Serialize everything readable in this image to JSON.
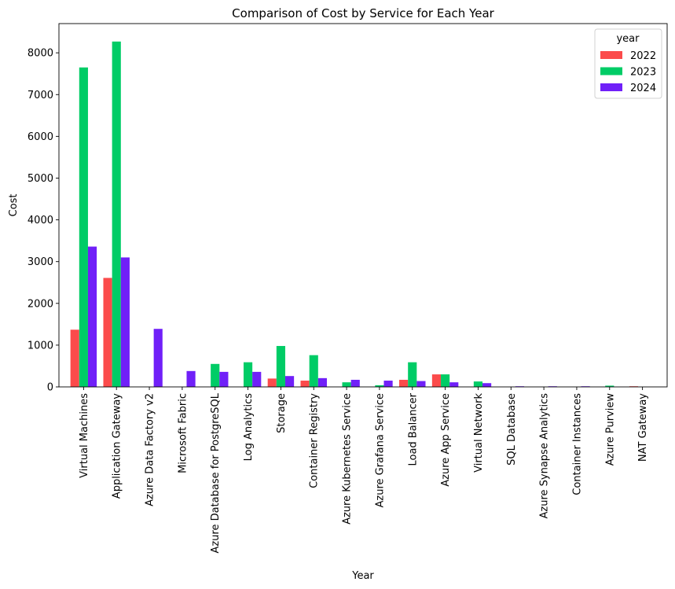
{
  "chart_data": {
    "type": "bar",
    "title": "Comparison of Cost by Service for Each Year",
    "xlabel": "Year",
    "ylabel": "Cost",
    "ylim": [
      0,
      8700
    ],
    "yticks": [
      0,
      1000,
      2000,
      3000,
      4000,
      5000,
      6000,
      7000,
      8000
    ],
    "categories": [
      "Virtual Machines",
      "Application Gateway",
      "Azure Data Factory v2",
      "Microsoft Fabric",
      "Azure Database for PostgreSQL",
      "Log Analytics",
      "Storage",
      "Container Registry",
      "Azure Kubernetes Service",
      "Azure Grafana Service",
      "Load Balancer",
      "Azure App Service",
      "Virtual Network",
      "SQL Database",
      "Azure Synapse Analytics",
      "Container Instances",
      "Azure Purview",
      "NAT Gateway"
    ],
    "series": [
      {
        "name": "2022",
        "color": "#fb4b4b",
        "values": [
          1370,
          2610,
          0,
          0,
          0,
          0,
          200,
          150,
          0,
          0,
          170,
          300,
          0,
          0,
          0,
          0,
          0,
          15
        ]
      },
      {
        "name": "2023",
        "color": "#00cc66",
        "values": [
          7650,
          8270,
          0,
          0,
          550,
          590,
          980,
          760,
          110,
          40,
          590,
          300,
          130,
          0,
          0,
          0,
          30,
          0
        ]
      },
      {
        "name": "2024",
        "color": "#7020f8",
        "values": [
          3360,
          3100,
          1390,
          380,
          360,
          360,
          260,
          210,
          170,
          150,
          140,
          110,
          90,
          15,
          15,
          15,
          0,
          0
        ]
      }
    ],
    "legend": {
      "title": "year",
      "position": "top-right"
    }
  }
}
